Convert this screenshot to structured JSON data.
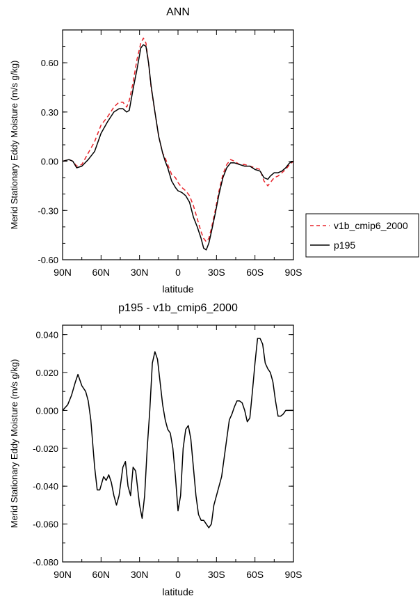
{
  "chart_data": [
    {
      "type": "line",
      "title": "ANN",
      "xlabel": "latitude",
      "ylabel": "Merid Stationary Eddy Moisture (m/s g/kg)",
      "xlim": [
        90,
        -90
      ],
      "ylim": [
        -0.6,
        0.8
      ],
      "x_ticks": [
        90,
        60,
        30,
        0,
        -30,
        -60,
        -90
      ],
      "x_tick_labels": [
        "90N",
        "60N",
        "30N",
        "0",
        "30S",
        "60S",
        "90S"
      ],
      "y_ticks": [
        -0.6,
        -0.3,
        0.0,
        0.3,
        0.6
      ],
      "y_tick_labels": [
        "-0.60",
        "-0.30",
        "0.00",
        "0.30",
        "0.60"
      ],
      "legend": {
        "placement": "right"
      },
      "series": [
        {
          "name": "v1b_cmip6_2000",
          "color": "#e8232a",
          "dash": true,
          "x": [
            90,
            85,
            82,
            79,
            75,
            70,
            65,
            60,
            55,
            50,
            46,
            43,
            40,
            38,
            35,
            32,
            29,
            27,
            25,
            23,
            21,
            18,
            15,
            12,
            10,
            8,
            5,
            2,
            0,
            -3,
            -6,
            -9,
            -12,
            -15,
            -18,
            -20,
            -22,
            -24,
            -26,
            -29,
            -32,
            -35,
            -38,
            -41,
            -44,
            -48,
            -52,
            -56,
            -60,
            -64,
            -67,
            -70,
            -72,
            -75,
            -78,
            -81,
            -84,
            -87,
            -90
          ],
          "y": [
            0,
            0.01,
            0,
            -0.03,
            -0.02,
            0.05,
            0.12,
            0.22,
            0.27,
            0.33,
            0.36,
            0.36,
            0.33,
            0.37,
            0.48,
            0.62,
            0.72,
            0.75,
            0.72,
            0.6,
            0.45,
            0.3,
            0.15,
            0.05,
            0.02,
            -0.02,
            -0.08,
            -0.1,
            -0.13,
            -0.16,
            -0.18,
            -0.21,
            -0.27,
            -0.35,
            -0.43,
            -0.47,
            -0.49,
            -0.47,
            -0.41,
            -0.3,
            -0.18,
            -0.08,
            -0.02,
            0.01,
            0,
            -0.02,
            -0.02,
            -0.03,
            -0.04,
            -0.05,
            -0.12,
            -0.15,
            -0.13,
            -0.1,
            -0.09,
            -0.07,
            -0.05,
            -0.02,
            0
          ]
        },
        {
          "name": "p195",
          "color": "#000000",
          "dash": false,
          "x": [
            90,
            85,
            82,
            79,
            75,
            70,
            65,
            60,
            55,
            50,
            46,
            43,
            40,
            38,
            35,
            32,
            29,
            27,
            25,
            23,
            21,
            18,
            15,
            12,
            10,
            8,
            5,
            2,
            0,
            -3,
            -6,
            -9,
            -12,
            -15,
            -18,
            -20,
            -22,
            -24,
            -26,
            -29,
            -32,
            -35,
            -38,
            -41,
            -44,
            -48,
            -52,
            -56,
            -60,
            -64,
            -67,
            -70,
            -72,
            -75,
            -78,
            -81,
            -84,
            -87,
            -90
          ],
          "y": [
            0,
            0.01,
            0,
            -0.04,
            -0.03,
            0.01,
            0.06,
            0.17,
            0.24,
            0.3,
            0.32,
            0.32,
            0.3,
            0.31,
            0.44,
            0.56,
            0.69,
            0.71,
            0.7,
            0.6,
            0.46,
            0.3,
            0.15,
            0.05,
            0,
            -0.04,
            -0.12,
            -0.16,
            -0.18,
            -0.19,
            -0.21,
            -0.25,
            -0.34,
            -0.4,
            -0.47,
            -0.53,
            -0.54,
            -0.5,
            -0.43,
            -0.32,
            -0.2,
            -0.1,
            -0.04,
            -0.01,
            -0.01,
            -0.02,
            -0.03,
            -0.03,
            -0.05,
            -0.06,
            -0.1,
            -0.11,
            -0.09,
            -0.07,
            -0.07,
            -0.06,
            -0.04,
            -0.01,
            0
          ]
        }
      ]
    },
    {
      "type": "line",
      "title": "p195 - v1b_cmip6_2000",
      "xlabel": "latitude",
      "ylabel": "Merid Stationary Eddy Moisture (m/s g/kg)",
      "xlim": [
        90,
        -90
      ],
      "ylim": [
        -0.08,
        0.045
      ],
      "x_ticks": [
        90,
        60,
        30,
        0,
        -30,
        -60,
        -90
      ],
      "x_tick_labels": [
        "90N",
        "60N",
        "30N",
        "0",
        "30S",
        "60S",
        "90S"
      ],
      "y_ticks": [
        -0.08,
        -0.06,
        -0.04,
        -0.02,
        0.0,
        0.02,
        0.04
      ],
      "y_tick_labels": [
        "-0.080",
        "-0.060",
        "-0.040",
        "-0.020",
        "0.000",
        "0.020",
        "0.040"
      ],
      "series": [
        {
          "color": "#000000",
          "dash": false,
          "x": [
            90,
            86,
            83,
            80,
            78,
            75,
            72,
            70,
            68,
            65,
            63,
            61,
            58,
            56,
            54,
            52,
            50,
            48,
            46,
            43,
            41,
            39,
            37,
            35,
            33,
            30,
            28,
            26,
            24,
            22,
            20,
            18,
            16,
            14,
            12,
            10,
            8,
            6,
            4,
            2,
            0,
            -2,
            -4,
            -6,
            -8,
            -10,
            -12,
            -14,
            -16,
            -18,
            -20,
            -22,
            -24,
            -26,
            -28,
            -30,
            -32,
            -34,
            -36,
            -38,
            -40,
            -42,
            -44,
            -46,
            -48,
            -50,
            -52,
            -54,
            -56,
            -58,
            -60,
            -62,
            -64,
            -66,
            -68,
            -70,
            -72,
            -74,
            -76,
            -78,
            -80,
            -82,
            -84,
            -86,
            -88,
            -90
          ],
          "y": [
            0,
            0.003,
            0.008,
            0.015,
            0.019,
            0.013,
            0.01,
            0.005,
            -0.005,
            -0.03,
            -0.042,
            -0.042,
            -0.035,
            -0.037,
            -0.034,
            -0.038,
            -0.045,
            -0.05,
            -0.045,
            -0.03,
            -0.027,
            -0.04,
            -0.045,
            -0.03,
            -0.032,
            -0.05,
            -0.057,
            -0.045,
            -0.02,
            0,
            0.025,
            0.031,
            0.027,
            0.015,
            0.003,
            -0.005,
            -0.01,
            -0.012,
            -0.02,
            -0.035,
            -0.053,
            -0.045,
            -0.02,
            -0.01,
            -0.008,
            -0.015,
            -0.03,
            -0.045,
            -0.055,
            -0.058,
            -0.058,
            -0.06,
            -0.062,
            -0.06,
            -0.05,
            -0.045,
            -0.04,
            -0.035,
            -0.025,
            -0.015,
            -0.005,
            -0.002,
            0.002,
            0.005,
            0.005,
            0.004,
            0,
            -0.006,
            -0.004,
            0.01,
            0.025,
            0.038,
            0.038,
            0.035,
            0.025,
            0.022,
            0.02,
            0.015,
            0.005,
            -0.003,
            -0.003,
            -0.002,
            0,
            0,
            0,
            0
          ]
        }
      ]
    }
  ]
}
